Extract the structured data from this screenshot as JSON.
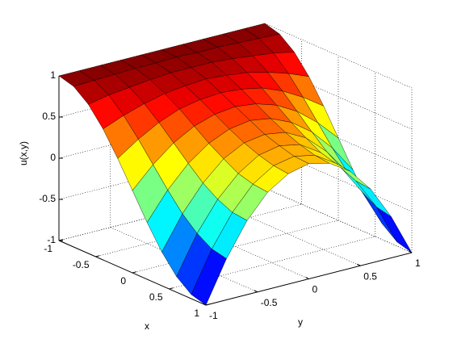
{
  "chart_data": {
    "type": "surface",
    "xlabel": "x",
    "ylabel": "y",
    "zlabel": "u(x,y)",
    "x": [
      -1,
      -0.8,
      -0.6,
      -0.4,
      -0.2,
      0,
      0.2,
      0.4,
      0.6,
      0.8,
      1
    ],
    "y": [
      -1,
      -0.8,
      -0.6,
      -0.4,
      -0.2,
      0,
      0.2,
      0.4,
      0.6,
      0.8,
      1
    ],
    "z": [
      [
        1,
        1,
        1,
        1,
        1,
        1,
        1,
        1,
        1,
        1,
        1
      ],
      [
        0.95,
        0.96,
        0.97,
        0.98,
        0.98,
        0.99,
        0.98,
        0.98,
        0.97,
        0.96,
        0.95
      ],
      [
        0.81,
        0.86,
        0.89,
        0.92,
        0.94,
        0.94,
        0.94,
        0.92,
        0.89,
        0.86,
        0.81
      ],
      [
        0.59,
        0.69,
        0.77,
        0.83,
        0.86,
        0.88,
        0.86,
        0.83,
        0.77,
        0.69,
        0.59
      ],
      [
        0.31,
        0.48,
        0.62,
        0.72,
        0.77,
        0.79,
        0.77,
        0.72,
        0.62,
        0.48,
        0.31
      ],
      [
        0,
        0.25,
        0.45,
        0.59,
        0.67,
        0.7,
        0.67,
        0.59,
        0.45,
        0.25,
        0
      ],
      [
        -0.31,
        0.02,
        0.28,
        0.46,
        0.57,
        0.61,
        0.57,
        0.46,
        0.28,
        0.02,
        -0.31
      ],
      [
        -0.59,
        -0.19,
        0.12,
        0.35,
        0.48,
        0.52,
        0.48,
        0.35,
        0.12,
        -0.19,
        -0.59
      ],
      [
        -0.81,
        -0.35,
        0,
        0.25,
        0.41,
        0.46,
        0.41,
        0.25,
        0,
        -0.35,
        -0.81
      ],
      [
        -0.95,
        -0.46,
        -0.08,
        0.2,
        0.36,
        0.41,
        0.36,
        0.2,
        -0.08,
        -0.46,
        -0.95
      ],
      [
        -1,
        -0.5,
        -0.1,
        0.18,
        0.34,
        0.4,
        0.34,
        0.18,
        -0.1,
        -0.5,
        -1
      ]
    ],
    "xlim": [
      -1,
      1
    ],
    "ylim": [
      -1,
      1
    ],
    "zlim": [
      -1,
      1
    ],
    "xticks": [
      -1,
      -0.5,
      0,
      0.5,
      1
    ],
    "yticks": [
      -1,
      -0.5,
      0,
      0.5,
      1
    ],
    "zticks": [
      -1,
      -0.5,
      0,
      0.5,
      1
    ],
    "grid": true,
    "colormap": "jet",
    "edgecolor": "#000000"
  }
}
